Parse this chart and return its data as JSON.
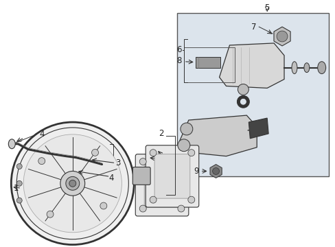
{
  "bg_color": "#ffffff",
  "box_color": "#dce4ec",
  "line_color": "#333333",
  "text_color": "#222222",
  "font_size": 8.5,
  "figsize": [
    4.89,
    3.6
  ],
  "dpi": 100
}
